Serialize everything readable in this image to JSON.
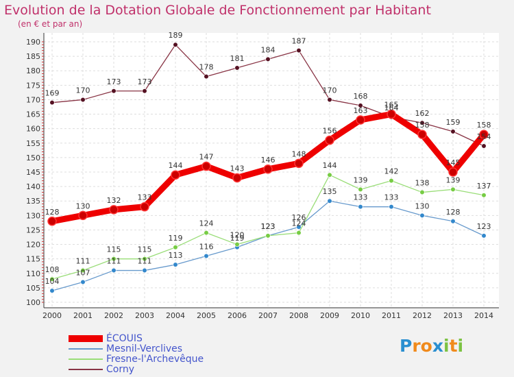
{
  "header": {
    "title": "Evolution de la Dotation Globale de Fonctionnement par Habitant",
    "subtitle": "(en € et par an)"
  },
  "logo": {
    "text": "Proxiti",
    "letters": [
      "P",
      "r",
      "o",
      "x",
      "i",
      "t",
      "i"
    ]
  },
  "colors": {
    "title": "#c0306a",
    "plot_background": "#ffffff",
    "grid": "#dddddd",
    "axis": "#333333",
    "legend_text": "#4455cc"
  },
  "chart_data": {
    "type": "line",
    "title": "Evolution de la Dotation Globale de Fonctionnement par Habitant",
    "subtitle": "(en € et par an)",
    "xlabel": "",
    "ylabel": "",
    "x": [
      2000,
      2001,
      2002,
      2003,
      2004,
      2005,
      2006,
      2007,
      2008,
      2009,
      2010,
      2011,
      2012,
      2013,
      2014
    ],
    "ylim": [
      100,
      190
    ],
    "yticks": [
      100,
      105,
      110,
      115,
      120,
      125,
      130,
      135,
      140,
      145,
      150,
      155,
      160,
      165,
      170,
      175,
      180,
      185,
      190
    ],
    "grid": true,
    "legend_position": "bottom-left",
    "series": [
      {
        "name": "ÉCOUIS",
        "color": "#ee0000",
        "marker": "#cc0000",
        "emphasis": true,
        "values": [
          128,
          130,
          132,
          133,
          144,
          147,
          143,
          146,
          148,
          156,
          163,
          165,
          158,
          145,
          158
        ]
      },
      {
        "name": "Mesnil-Verclives",
        "color": "#6699cc",
        "marker": "#3388cc",
        "emphasis": false,
        "values": [
          104,
          107,
          111,
          111,
          113,
          116,
          119,
          123,
          126,
          135,
          133,
          133,
          130,
          128,
          123
        ]
      },
      {
        "name": "Fresne-l'Archevêque",
        "color": "#99dd77",
        "marker": "#77cc44",
        "emphasis": false,
        "values": [
          108,
          111,
          115,
          115,
          119,
          124,
          120,
          123,
          124,
          144,
          139,
          142,
          138,
          139,
          137
        ]
      },
      {
        "name": "Corny",
        "color": "#883344",
        "marker": "#551122",
        "emphasis": false,
        "values": [
          169,
          170,
          173,
          173,
          189,
          178,
          181,
          184,
          187,
          170,
          168,
          164,
          162,
          159,
          154
        ]
      }
    ]
  }
}
